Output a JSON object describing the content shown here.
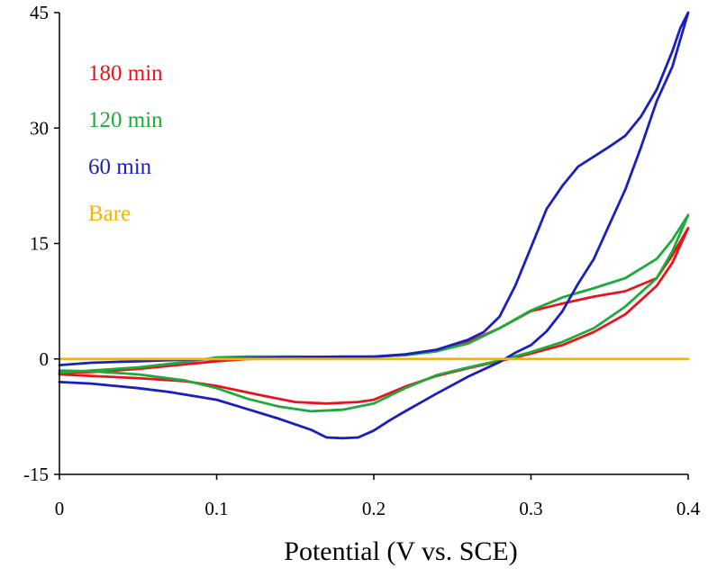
{
  "chart_data": {
    "type": "line",
    "title": "",
    "xlabel": "Potential (V vs. SCE)",
    "ylabel": "",
    "xlim": [
      0,
      0.4
    ],
    "ylim": [
      -15,
      45
    ],
    "x_ticks": [
      0,
      0.1,
      0.2,
      0.3,
      0.4
    ],
    "x_tick_labels": [
      "0",
      "0.1",
      "0.2",
      "0.3",
      "0.4"
    ],
    "y_ticks": [
      -15,
      0,
      15,
      30,
      45
    ],
    "y_tick_labels": [
      "-15",
      "0",
      "15",
      "30",
      "45"
    ],
    "grid": false,
    "legend_position": "top-left",
    "series": [
      {
        "name": "180 min",
        "color": "#e8141c",
        "points": [
          [
            0.0,
            -1.8
          ],
          [
            0.02,
            -1.7
          ],
          [
            0.05,
            -1.3
          ],
          [
            0.08,
            -0.7
          ],
          [
            0.1,
            -0.3
          ],
          [
            0.12,
            0.0
          ],
          [
            0.15,
            0.1
          ],
          [
            0.18,
            0.2
          ],
          [
            0.2,
            0.3
          ],
          [
            0.22,
            0.5
          ],
          [
            0.24,
            1.0
          ],
          [
            0.26,
            2.2
          ],
          [
            0.28,
            4.0
          ],
          [
            0.3,
            6.2
          ],
          [
            0.32,
            7.2
          ],
          [
            0.34,
            8.1
          ],
          [
            0.36,
            8.8
          ],
          [
            0.38,
            10.5
          ],
          [
            0.39,
            13.5
          ],
          [
            0.4,
            17.0
          ],
          [
            0.39,
            12.5
          ],
          [
            0.38,
            9.5
          ],
          [
            0.36,
            5.8
          ],
          [
            0.34,
            3.5
          ],
          [
            0.32,
            1.8
          ],
          [
            0.3,
            0.7
          ],
          [
            0.28,
            -0.3
          ],
          [
            0.26,
            -1.2
          ],
          [
            0.24,
            -2.2
          ],
          [
            0.22,
            -3.6
          ],
          [
            0.2,
            -5.3
          ],
          [
            0.19,
            -5.6
          ],
          [
            0.17,
            -5.8
          ],
          [
            0.15,
            -5.6
          ],
          [
            0.13,
            -4.8
          ],
          [
            0.1,
            -3.5
          ],
          [
            0.08,
            -2.9
          ],
          [
            0.05,
            -2.5
          ],
          [
            0.02,
            -2.2
          ],
          [
            0.0,
            -2.0
          ]
        ]
      },
      {
        "name": "120 min",
        "color": "#1faa3c",
        "points": [
          [
            0.0,
            -1.8
          ],
          [
            0.02,
            -1.5
          ],
          [
            0.05,
            -1.1
          ],
          [
            0.08,
            -0.4
          ],
          [
            0.1,
            0.2
          ],
          [
            0.12,
            0.3
          ],
          [
            0.15,
            0.3
          ],
          [
            0.18,
            0.2
          ],
          [
            0.2,
            0.3
          ],
          [
            0.22,
            0.5
          ],
          [
            0.24,
            1.0
          ],
          [
            0.26,
            2.0
          ],
          [
            0.28,
            4.0
          ],
          [
            0.3,
            6.3
          ],
          [
            0.32,
            8.0
          ],
          [
            0.34,
            9.2
          ],
          [
            0.36,
            10.5
          ],
          [
            0.38,
            13.0
          ],
          [
            0.39,
            15.5
          ],
          [
            0.4,
            18.7
          ],
          [
            0.39,
            14.0
          ],
          [
            0.38,
            10.5
          ],
          [
            0.36,
            6.8
          ],
          [
            0.34,
            4.0
          ],
          [
            0.32,
            2.2
          ],
          [
            0.3,
            0.9
          ],
          [
            0.28,
            -0.2
          ],
          [
            0.26,
            -1.1
          ],
          [
            0.24,
            -2.1
          ],
          [
            0.22,
            -3.8
          ],
          [
            0.2,
            -5.8
          ],
          [
            0.18,
            -6.6
          ],
          [
            0.16,
            -6.8
          ],
          [
            0.14,
            -6.2
          ],
          [
            0.12,
            -5.2
          ],
          [
            0.1,
            -3.8
          ],
          [
            0.08,
            -2.8
          ],
          [
            0.05,
            -2.0
          ],
          [
            0.02,
            -1.6
          ],
          [
            0.0,
            -1.5
          ]
        ]
      },
      {
        "name": "60 min",
        "color": "#1a1fbf",
        "points": [
          [
            0.0,
            -0.8
          ],
          [
            0.02,
            -0.5
          ],
          [
            0.05,
            -0.3
          ],
          [
            0.08,
            -0.1
          ],
          [
            0.1,
            0.0
          ],
          [
            0.14,
            0.2
          ],
          [
            0.18,
            0.3
          ],
          [
            0.2,
            0.3
          ],
          [
            0.22,
            0.6
          ],
          [
            0.24,
            1.2
          ],
          [
            0.26,
            2.5
          ],
          [
            0.27,
            3.5
          ],
          [
            0.28,
            5.5
          ],
          [
            0.29,
            9.5
          ],
          [
            0.3,
            14.5
          ],
          [
            0.31,
            19.5
          ],
          [
            0.32,
            22.5
          ],
          [
            0.33,
            25.0
          ],
          [
            0.34,
            26.3
          ],
          [
            0.35,
            27.6
          ],
          [
            0.36,
            29.0
          ],
          [
            0.37,
            31.5
          ],
          [
            0.38,
            35.0
          ],
          [
            0.39,
            40.0
          ],
          [
            0.395,
            43.0
          ],
          [
            0.4,
            45.0
          ],
          [
            0.39,
            38.0
          ],
          [
            0.38,
            33.5
          ],
          [
            0.37,
            27.5
          ],
          [
            0.36,
            22.0
          ],
          [
            0.35,
            17.5
          ],
          [
            0.34,
            13.0
          ],
          [
            0.33,
            9.8
          ],
          [
            0.32,
            6.2
          ],
          [
            0.31,
            3.6
          ],
          [
            0.3,
            1.8
          ],
          [
            0.29,
            0.8
          ],
          [
            0.28,
            -0.4
          ],
          [
            0.26,
            -2.3
          ],
          [
            0.24,
            -4.5
          ],
          [
            0.22,
            -6.8
          ],
          [
            0.21,
            -8.0
          ],
          [
            0.2,
            -9.3
          ],
          [
            0.19,
            -10.2
          ],
          [
            0.18,
            -10.3
          ],
          [
            0.17,
            -10.2
          ],
          [
            0.16,
            -9.2
          ],
          [
            0.14,
            -7.8
          ],
          [
            0.1,
            -5.3
          ],
          [
            0.07,
            -4.3
          ],
          [
            0.05,
            -3.8
          ],
          [
            0.02,
            -3.2
          ],
          [
            0.0,
            -3.0
          ]
        ]
      },
      {
        "name": "Bare",
        "color": "#f4b400",
        "points": [
          [
            0.0,
            0.0
          ],
          [
            0.4,
            0.0
          ]
        ]
      }
    ]
  }
}
